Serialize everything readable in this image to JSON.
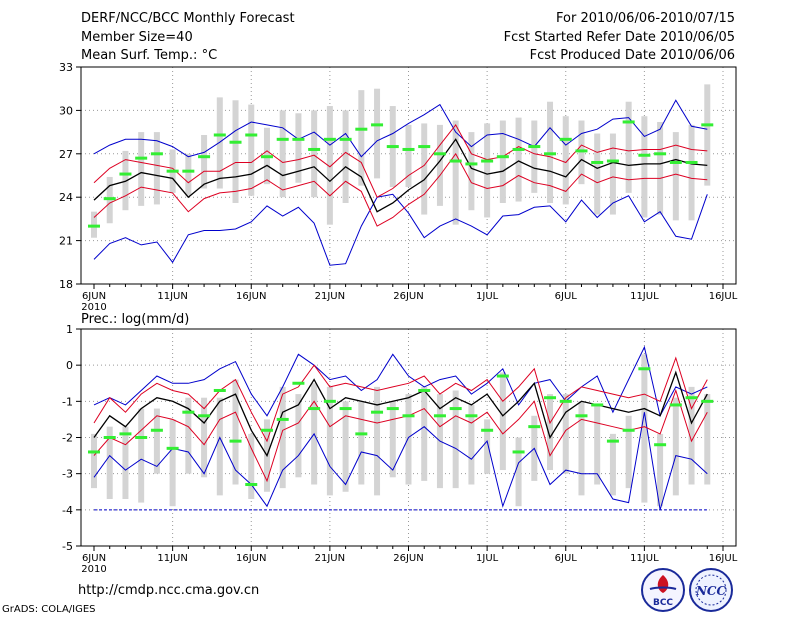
{
  "header": {
    "title": "DERF/NCC/BCC Monthly Forecast",
    "member": "Member Size=40",
    "variable": "Mean Surf. Temp.: °C",
    "period": "For 2010/06/06-2010/07/15",
    "refer": "Fcst Started Refer Date 2010/06/05",
    "produced": "Fcst Produced Date 2010/06/06"
  },
  "footer": {
    "url": "http://cmdp.ncc.cma.gov.cn",
    "credit": "GrADS: COLA/IGES",
    "logo_left": "BCC",
    "logo_right": "NCC"
  },
  "colors": {
    "box": "#d4d4d4",
    "median": "#33ee33",
    "mean": "#000000",
    "band": "#dd0022",
    "envelope": "#0000cc",
    "grid": "#999999"
  },
  "chart_data": [
    {
      "type": "box-line",
      "title": "Mean Surf. Temp.: °C",
      "x_start_date": "2010-06-06",
      "days": 40,
      "xtick_labels": [
        "6JUN",
        "11JUN",
        "16JUN",
        "21JUN",
        "26JUN",
        "1JUL",
        "6JUL",
        "11JUL",
        "16JUL"
      ],
      "xtick_year": "2010",
      "ylim": [
        18,
        33
      ],
      "yticks": [
        18,
        21,
        24,
        27,
        30,
        33
      ],
      "mean": [
        23.8,
        24.8,
        25.1,
        25.7,
        25.5,
        25.3,
        24.0,
        24.9,
        25.3,
        25.4,
        25.6,
        26.2,
        25.5,
        25.8,
        26.1,
        25.1,
        26.1,
        25.4,
        23.0,
        23.6,
        24.5,
        25.2,
        26.5,
        28.0,
        26.0,
        25.6,
        25.8,
        26.5,
        26.0,
        25.8,
        25.4,
        26.6,
        26.0,
        26.4,
        26.2,
        26.3,
        26.3,
        26.6,
        26.3,
        26.2
      ],
      "upper": [
        25.0,
        26.0,
        26.6,
        26.4,
        26.2,
        26.0,
        25.0,
        25.8,
        25.8,
        26.4,
        26.4,
        27.2,
        26.4,
        26.6,
        26.9,
        26.1,
        27.1,
        26.4,
        24.0,
        24.6,
        25.5,
        26.2,
        27.6,
        29.0,
        27.0,
        26.6,
        26.8,
        27.5,
        27.0,
        26.8,
        26.4,
        27.6,
        27.1,
        27.4,
        27.2,
        27.3,
        27.3,
        27.6,
        27.3,
        27.2
      ],
      "lower": [
        22.6,
        23.6,
        24.1,
        24.7,
        24.5,
        24.3,
        23.0,
        23.9,
        24.3,
        24.4,
        24.6,
        25.2,
        24.5,
        24.8,
        25.1,
        24.1,
        25.1,
        24.4,
        22.0,
        22.6,
        23.5,
        24.2,
        25.5,
        27.0,
        25.0,
        24.6,
        24.8,
        25.5,
        25.0,
        24.8,
        24.4,
        25.6,
        25.0,
        25.4,
        25.2,
        25.3,
        25.3,
        25.6,
        25.3,
        25.2
      ],
      "max": [
        27.0,
        27.6,
        28.0,
        28.0,
        27.9,
        27.5,
        26.8,
        27.1,
        27.8,
        28.6,
        29.2,
        29.0,
        28.8,
        28.0,
        28.5,
        27.6,
        28.4,
        26.8,
        27.9,
        28.4,
        29.1,
        29.7,
        30.4,
        28.5,
        27.5,
        28.3,
        28.4,
        28.0,
        27.5,
        28.8,
        27.6,
        28.4,
        28.7,
        29.4,
        29.5,
        28.2,
        28.7,
        30.7,
        28.9,
        28.7
      ],
      "min": [
        19.7,
        20.8,
        21.2,
        20.7,
        20.9,
        19.5,
        21.4,
        21.7,
        21.7,
        21.8,
        22.3,
        23.4,
        22.7,
        23.3,
        22.2,
        19.3,
        19.4,
        22.0,
        24.0,
        24.2,
        22.9,
        21.2,
        22.0,
        22.5,
        22.0,
        21.4,
        22.7,
        22.8,
        23.3,
        23.4,
        22.3,
        23.8,
        22.6,
        23.6,
        24.1,
        22.3,
        23.0,
        21.3,
        21.1,
        24.2
      ],
      "median": [
        22.0,
        23.9,
        25.6,
        26.7,
        27.0,
        25.8,
        25.8,
        26.8,
        28.3,
        27.8,
        28.3,
        26.8,
        28.0,
        28.0,
        27.3,
        28.0,
        28.0,
        28.7,
        29.0,
        27.5,
        27.3,
        27.5,
        27.0,
        26.5,
        26.3,
        26.5,
        26.8,
        27.3,
        27.5,
        27.0,
        28.0,
        27.2,
        26.4,
        26.5,
        29.2,
        26.9,
        27.0,
        26.4,
        26.4,
        29.0
      ],
      "box_high": [
        23.0,
        25.4,
        27.2,
        28.5,
        28.5,
        27.3,
        27.0,
        28.3,
        30.9,
        30.7,
        30.4,
        28.8,
        30.0,
        29.8,
        30.0,
        30.3,
        30.0,
        31.4,
        31.5,
        30.3,
        29.0,
        29.1,
        29.0,
        29.3,
        28.5,
        29.1,
        29.3,
        29.5,
        29.3,
        30.6,
        29.6,
        29.3,
        28.4,
        28.4,
        30.6,
        29.6,
        29.2,
        28.5,
        29.0,
        31.8
      ],
      "box_low": [
        21.2,
        22.2,
        23.1,
        23.4,
        23.5,
        24.3,
        24.1,
        24.6,
        24.6,
        23.6,
        24.1,
        24.9,
        24.0,
        25.0,
        24.0,
        22.1,
        23.6,
        24.8,
        25.3,
        24.7,
        24.7,
        22.8,
        23.4,
        22.1,
        23.1,
        22.6,
        23.6,
        23.7,
        24.3,
        23.6,
        23.5,
        24.9,
        22.8,
        22.8,
        24.3,
        22.6,
        22.8,
        22.4,
        22.4,
        24.8
      ]
    },
    {
      "type": "box-line",
      "title": "Prec.: log(mm/d)",
      "x_start_date": "2010-06-06",
      "days": 40,
      "xtick_labels": [
        "6JUN",
        "11JUN",
        "16JUN",
        "21JUN",
        "26JUN",
        "1JUL",
        "6JUL",
        "11JUL",
        "16JUL"
      ],
      "xtick_year": "2010",
      "ylim": [
        -5,
        1
      ],
      "yticks": [
        -5,
        -4,
        -3,
        -2,
        -1,
        0,
        1
      ],
      "mean": [
        -2.0,
        -1.4,
        -1.7,
        -1.2,
        -0.9,
        -1.0,
        -1.2,
        -1.6,
        -1.0,
        -0.8,
        -1.8,
        -2.5,
        -1.3,
        -1.1,
        -0.4,
        -1.2,
        -0.9,
        -1.0,
        -1.1,
        -1.0,
        -0.9,
        -0.7,
        -1.2,
        -0.9,
        -1.1,
        -0.8,
        -1.4,
        -1.0,
        -0.5,
        -2.0,
        -1.3,
        -1.0,
        -1.1,
        -1.2,
        -1.3,
        -1.2,
        -1.4,
        -0.2,
        -1.6,
        -0.8
      ],
      "upper": [
        -1.6,
        -0.9,
        -1.3,
        -0.8,
        -0.5,
        -0.7,
        -0.8,
        -1.2,
        -0.7,
        -0.4,
        -1.3,
        -2.1,
        -0.8,
        -0.6,
        0.0,
        -0.6,
        -0.5,
        -0.6,
        -0.7,
        -0.6,
        -0.5,
        -0.3,
        -0.8,
        -0.5,
        -0.7,
        -0.4,
        -1.0,
        -0.6,
        -0.1,
        -1.6,
        -0.9,
        -0.6,
        -0.7,
        -0.8,
        -0.9,
        -0.8,
        -1.0,
        0.2,
        -1.2,
        -0.4
      ],
      "lower": [
        -2.5,
        -2.0,
        -2.2,
        -1.8,
        -1.4,
        -1.5,
        -1.7,
        -2.2,
        -1.5,
        -1.3,
        -2.3,
        -3.2,
        -1.8,
        -1.6,
        -1.0,
        -1.7,
        -1.4,
        -1.5,
        -1.6,
        -1.5,
        -1.4,
        -1.2,
        -1.7,
        -1.4,
        -1.6,
        -1.3,
        -1.9,
        -1.5,
        -1.0,
        -2.5,
        -1.8,
        -1.5,
        -1.6,
        -1.7,
        -1.8,
        -1.7,
        -1.9,
        -0.7,
        -2.1,
        -1.3
      ],
      "max": [
        -1.1,
        -0.9,
        -1.1,
        -0.7,
        -0.3,
        -0.5,
        -0.5,
        -0.4,
        -0.1,
        0.1,
        -0.8,
        -1.4,
        -0.6,
        0.3,
        0.0,
        -0.4,
        -0.3,
        -0.7,
        -0.4,
        0.3,
        -0.3,
        -0.6,
        -0.4,
        -0.3,
        -0.8,
        -0.5,
        -0.1,
        -1.1,
        -0.5,
        -0.4,
        -1.0,
        -0.6,
        -0.3,
        -1.3,
        -0.4,
        0.5,
        -1.4,
        -0.6,
        -0.8,
        -0.6
      ],
      "min": [
        -3.1,
        -2.5,
        -2.9,
        -2.6,
        -2.8,
        -2.3,
        -2.4,
        -3.0,
        -2.0,
        -2.9,
        -3.3,
        -3.9,
        -2.9,
        -2.5,
        -1.9,
        -2.8,
        -3.3,
        -2.4,
        -2.5,
        -2.9,
        -2.0,
        -1.7,
        -2.1,
        -2.3,
        -2.6,
        -2.1,
        -3.9,
        -2.7,
        -2.3,
        -3.3,
        -2.9,
        -3.0,
        -3.0,
        -3.7,
        -3.8,
        -1.3,
        -4.0,
        -2.5,
        -2.6,
        -3.0
      ],
      "median": [
        -2.4,
        -2.0,
        -1.9,
        -2.0,
        -1.8,
        -2.3,
        -1.3,
        -1.4,
        -0.7,
        -2.1,
        -3.3,
        -1.8,
        -1.5,
        -0.5,
        -1.2,
        -1.0,
        -1.2,
        -1.9,
        -1.3,
        -1.2,
        -1.4,
        -0.7,
        -1.4,
        -1.2,
        -1.4,
        -1.8,
        -0.3,
        -2.4,
        -1.7,
        -0.9,
        -1.0,
        -1.4,
        -1.1,
        -2.1,
        -1.8,
        -0.1,
        -2.2,
        -1.1,
        -0.9,
        -1.0
      ],
      "box_high": [
        -1.9,
        -1.7,
        -1.7,
        -1.2,
        -1.2,
        -1.5,
        -0.9,
        -0.9,
        -0.9,
        -0.4,
        -1.9,
        -1.5,
        -0.6,
        -0.8,
        -0.5,
        -0.6,
        -1.0,
        -1.0,
        -0.6,
        -1.0,
        -0.8,
        -0.6,
        -0.8,
        -0.7,
        -1.1,
        -1.5,
        -0.2,
        -2.0,
        -1.4,
        -0.8,
        -0.8,
        -1.0,
        -1.1,
        -1.9,
        -1.4,
        0.3,
        -1.9,
        -0.9,
        -0.6,
        -0.8
      ],
      "box_low": [
        -3.4,
        -3.7,
        -3.7,
        -3.8,
        -3.0,
        -3.9,
        -3.0,
        -3.1,
        -3.6,
        -3.3,
        -3.7,
        -3.5,
        -3.4,
        -3.1,
        -3.3,
        -3.6,
        -3.5,
        -3.3,
        -3.6,
        -3.1,
        -3.3,
        -3.2,
        -3.4,
        -3.4,
        -3.3,
        -3.0,
        -2.9,
        -3.9,
        -3.2,
        -2.9,
        -3.0,
        -3.6,
        -3.3,
        -3.6,
        -3.4,
        -3.8,
        -3.9,
        -3.6,
        -3.3,
        -3.3
      ],
      "floor_line": -4
    }
  ]
}
